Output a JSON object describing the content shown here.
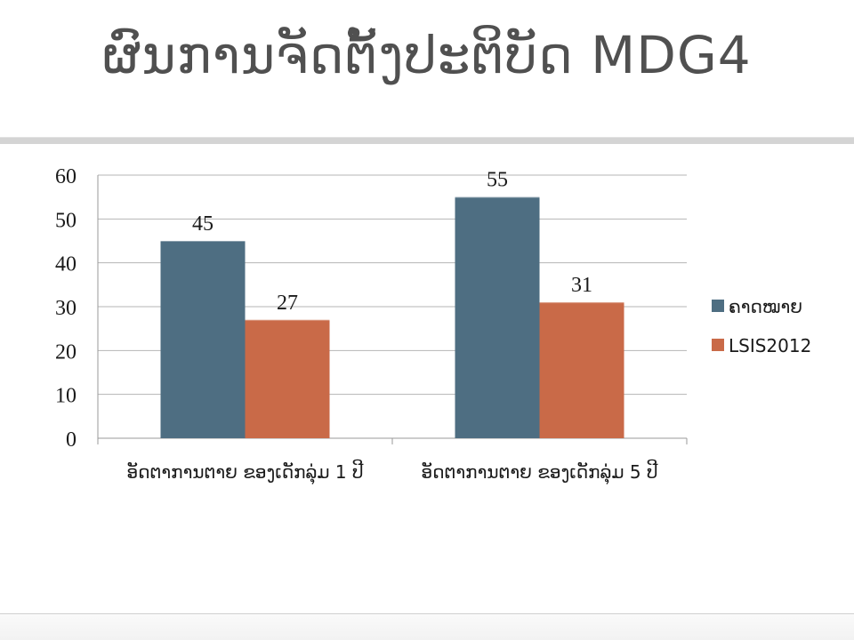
{
  "slide": {
    "title": "ຜົນການຈັດຕັ້ງປະຕິບັດ MDG4"
  },
  "chart_data": {
    "type": "bar",
    "categories": [
      "ອັດຕາການຕາຍ ຂອງເດັກລຸ່ມ 1 ປີ",
      "ອັດຕາການຕາຍ ຂອງເດັກລຸ່ມ 5 ປີ"
    ],
    "series": [
      {
        "name": "ຄາດໝາຍ",
        "values": [
          45,
          55
        ],
        "color": "#4e6e82"
      },
      {
        "name": "LSIS2012",
        "values": [
          27,
          31
        ],
        "color": "#c96a48"
      }
    ],
    "ylim": [
      0,
      60
    ],
    "yticks": [
      "0",
      "10",
      "20",
      "30",
      "40",
      "50",
      "60"
    ],
    "grid": true,
    "legend": "right",
    "data_labels": true
  }
}
